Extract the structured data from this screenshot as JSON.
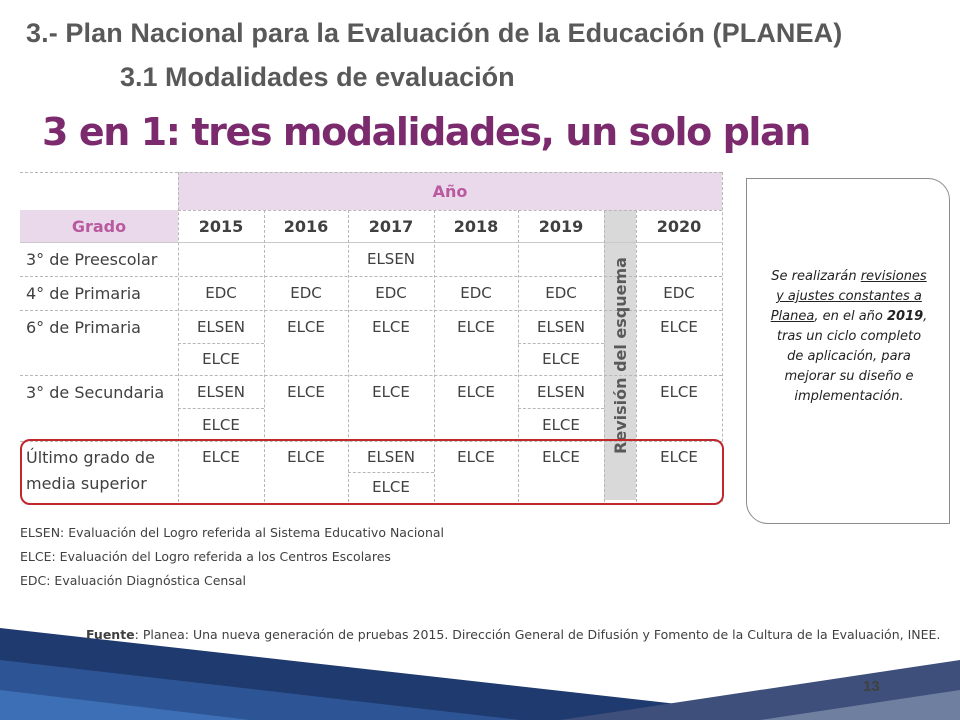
{
  "header": {
    "title": "3.- Plan Nacional para la Evaluación de la Educación (PLANEA)",
    "subtitle": "3.1 Modalidades de evaluación",
    "headline": "3 en 1: tres modalidades, un solo plan"
  },
  "table": {
    "year_header": "Año",
    "grade_header": "Grado",
    "years": [
      "2015",
      "2016",
      "2017",
      "2018",
      "2019",
      "2020"
    ],
    "revision_label": "Revisión del esquema",
    "grades": [
      "3° de Preescolar",
      "4° de Primaria",
      "6° de Primaria",
      "3° de Secundaria",
      "Último grado de media superior"
    ],
    "rows": {
      "preescolar": [
        "",
        "",
        "ELSEN",
        "",
        "",
        ""
      ],
      "primaria4": [
        "EDC",
        "EDC",
        "EDC",
        "EDC",
        "EDC",
        "EDC"
      ],
      "primaria6_a": [
        "ELSEN",
        "ELCE",
        "ELCE",
        "ELCE",
        "ELSEN",
        "ELCE"
      ],
      "primaria6_b": [
        "ELCE",
        "",
        "",
        "",
        "ELCE",
        ""
      ],
      "secundaria_a": [
        "ELSEN",
        "ELCE",
        "ELCE",
        "ELCE",
        "ELSEN",
        "ELCE"
      ],
      "secundaria_b": [
        "ELCE",
        "",
        "",
        "",
        "ELCE",
        ""
      ],
      "media_a": [
        "ELCE",
        "ELCE",
        "ELSEN",
        "ELCE",
        "ELCE",
        "ELCE"
      ],
      "media_b": [
        "",
        "",
        "ELCE",
        "",
        "",
        ""
      ]
    }
  },
  "note": {
    "p1": "Se realizarán",
    "p2": "revisiones y ajustes constantes a Planea",
    "p3": ", en el año ",
    "year": "2019",
    "p4": ", tras un ciclo completo de aplicación, para mejorar su diseño e implementación."
  },
  "legend": [
    "ELSEN: Evaluación del Logro referida al Sistema Educativo Nacional",
    "ELCE: Evaluación del Logro referida a los Centros Escolares",
    "EDC: Evaluación Diagnóstica Censal"
  ],
  "source": {
    "label": "Fuente",
    "text": ": Planea: Una nueva generación de pruebas 2015. Dirección General de Difusión y Fomento de la Cultura de la Evaluación, INEE."
  },
  "page_number": "13",
  "colors": {
    "purple": "#7b2a6e",
    "pink": "#b9599f",
    "header_bg": "#ead9ea",
    "red": "#c0282d",
    "navy": "#1f3a6e"
  }
}
